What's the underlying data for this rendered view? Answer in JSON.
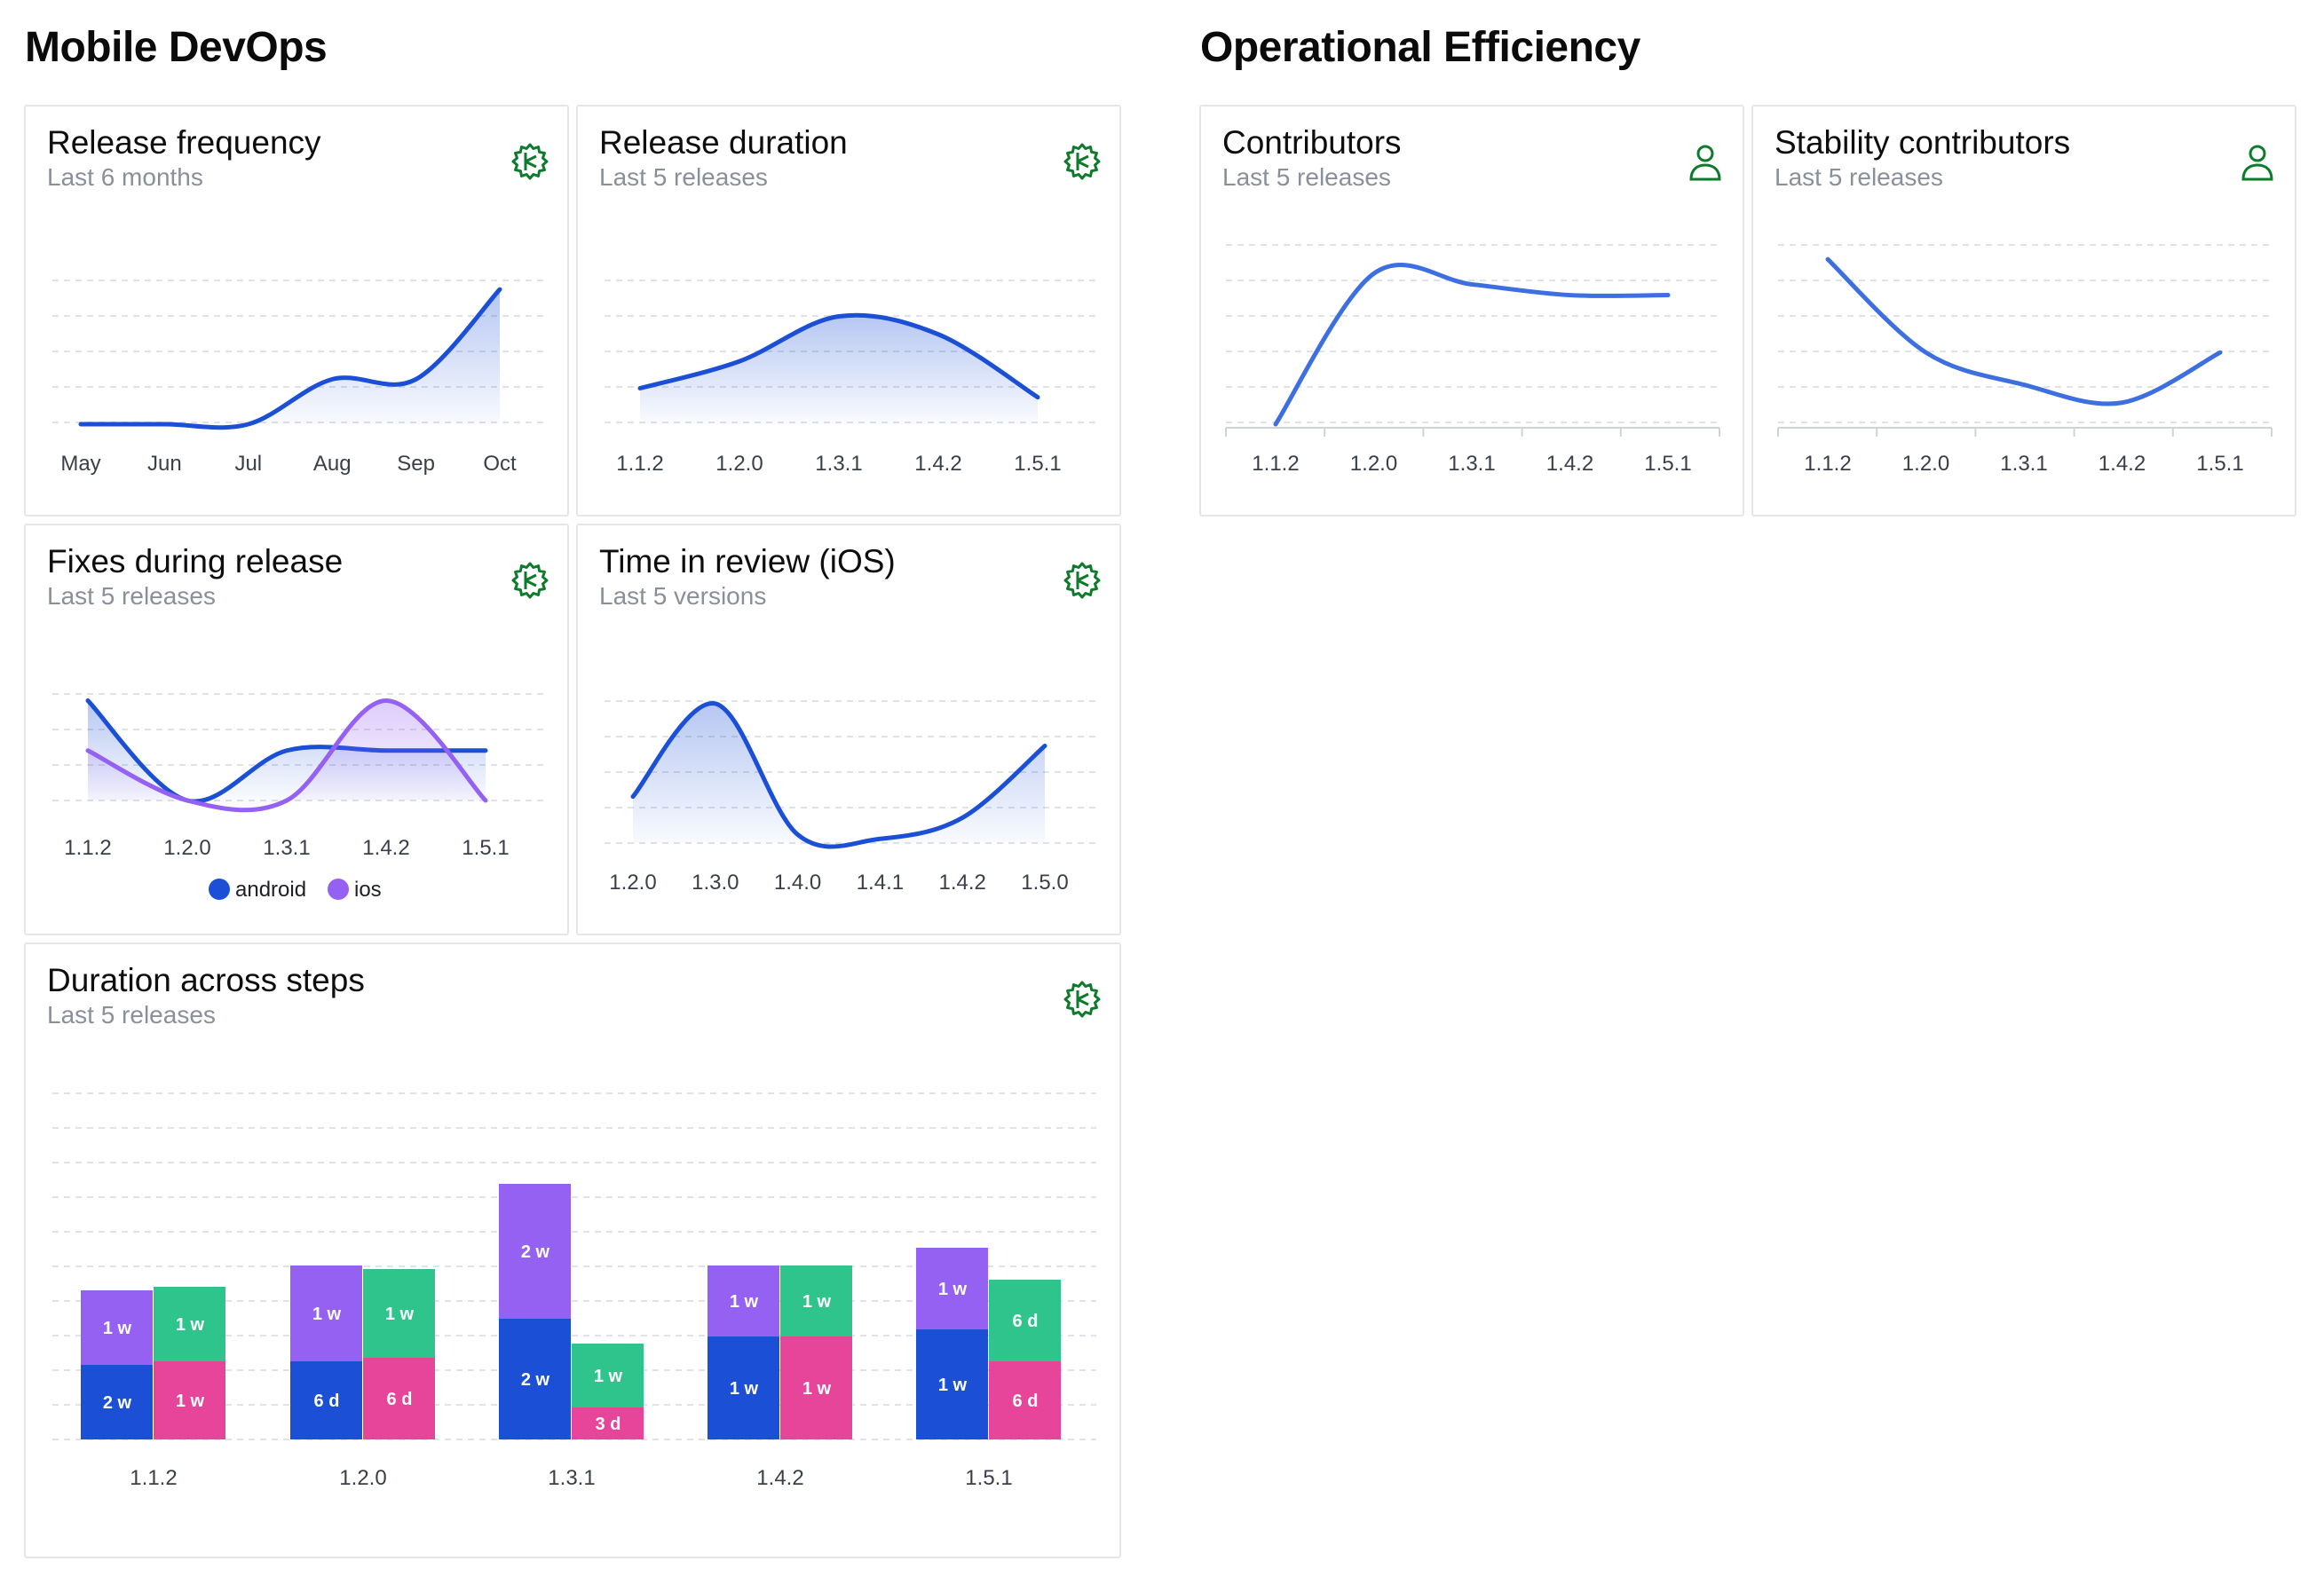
{
  "sections": {
    "mobile_devops": "Mobile DevOps",
    "operational_efficiency": "Operational Efficiency"
  },
  "colors": {
    "line": "#1a4fd6",
    "line_light": "#3d6fe0",
    "ios": "#9561f2",
    "green": "#30c48d",
    "pink": "#e7459a",
    "purple": "#9561f2",
    "blue": "#1a4fd6",
    "icon_green": "#0d7a2c"
  },
  "cards": {
    "release_frequency": {
      "title": "Release frequency",
      "subtitle": "Last 6 months",
      "icon": "gear-icon"
    },
    "release_duration": {
      "title": "Release duration",
      "subtitle": "Last 5 releases",
      "icon": "gear-icon"
    },
    "fixes_during_release": {
      "title": "Fixes during release",
      "subtitle": "Last 5 releases",
      "icon": "gear-icon"
    },
    "time_in_review": {
      "title": "Time in review (iOS)",
      "subtitle": "Last 5 versions",
      "icon": "gear-icon"
    },
    "duration_across_steps": {
      "title": "Duration across steps",
      "subtitle": "Last 5 releases",
      "icon": "gear-icon"
    },
    "contributors": {
      "title": "Contributors",
      "subtitle": "Last 5 releases",
      "icon": "user-icon"
    },
    "stability_contributors": {
      "title": "Stability contributors",
      "subtitle": "Last 5 releases",
      "icon": "user-icon"
    }
  },
  "chart_data": [
    {
      "id": "release_frequency",
      "type": "area",
      "categories": [
        "May",
        "Jun",
        "Jul",
        "Aug",
        "Sep",
        "Oct"
      ],
      "values": [
        0,
        0,
        0,
        1,
        1,
        3
      ],
      "ylim": [
        0,
        3.2
      ],
      "grid": true
    },
    {
      "id": "release_duration",
      "type": "area",
      "categories": [
        "1.1.2",
        "1.2.0",
        "1.3.1",
        "1.4.2",
        "1.5.1"
      ],
      "values": [
        2,
        3.5,
        6,
        5,
        1.5
      ],
      "ylim": [
        0,
        8
      ],
      "grid": true
    },
    {
      "id": "fixes_during_release",
      "type": "line",
      "categories": [
        "1.1.2",
        "1.2.0",
        "1.3.1",
        "1.4.2",
        "1.5.1"
      ],
      "series": [
        {
          "name": "android",
          "values": [
            3,
            0,
            1.5,
            1.5,
            1.5
          ]
        },
        {
          "name": "ios",
          "values": [
            1.5,
            0,
            0,
            3,
            0
          ]
        }
      ],
      "ylim": [
        0,
        3.2
      ],
      "grid": true,
      "legend": "bottom"
    },
    {
      "id": "time_in_review",
      "type": "area",
      "categories": [
        "1.2.0",
        "1.3.0",
        "1.4.0",
        "1.4.1",
        "1.4.2",
        "1.5.0"
      ],
      "values": [
        1.1,
        3.3,
        0.2,
        0.1,
        0.6,
        2.3
      ],
      "ylim": [
        0,
        4.2
      ],
      "grid": true
    },
    {
      "id": "contributors",
      "type": "line",
      "categories": [
        "1.1.2",
        "1.2.0",
        "1.3.1",
        "1.4.2",
        "1.5.1"
      ],
      "values": [
        0,
        4.2,
        3.9,
        3.6,
        3.6
      ],
      "ylim": [
        0,
        5
      ],
      "grid": true
    },
    {
      "id": "stability_contributors",
      "type": "line",
      "categories": [
        "1.1.2",
        "1.2.0",
        "1.3.1",
        "1.4.2",
        "1.5.1"
      ],
      "values": [
        4.6,
        2,
        1.1,
        0.6,
        2
      ],
      "ylim": [
        0,
        5
      ],
      "grid": true
    },
    {
      "id": "duration_across_steps",
      "type": "bar",
      "categories": [
        "1.1.2",
        "1.2.0",
        "1.3.1",
        "1.4.2",
        "1.5.1"
      ],
      "stacks": [
        {
          "name": "android",
          "segments": [
            {
              "values": [
                2.1,
                2.2,
                3.4,
                2.9,
                3.1
              ],
              "labels": [
                "2 w",
                "6 d",
                "2 w",
                "1 w",
                "1 w"
              ],
              "color": "#1a4fd6"
            },
            {
              "values": [
                2.1,
                2.7,
                3.8,
                2,
                2.3
              ],
              "labels": [
                "1 w",
                "1 w",
                "2 w",
                "1 w",
                "1 w"
              ],
              "color": "#9561f2"
            }
          ]
        },
        {
          "name": "ios",
          "segments": [
            {
              "values": [
                2.2,
                2.3,
                0.9,
                2.9,
                2.2
              ],
              "labels": [
                "1 w",
                "6 d",
                "3 d",
                "1 w",
                "6 d"
              ],
              "color": "#e7459a"
            },
            {
              "values": [
                2.1,
                2.5,
                1.8,
                2,
                2.3
              ],
              "labels": [
                "1 w",
                "1 w",
                "1 w",
                "1 w",
                "6 d"
              ],
              "color": "#30c48d"
            }
          ]
        }
      ],
      "ylim": [
        0,
        10
      ],
      "grid": true
    }
  ]
}
